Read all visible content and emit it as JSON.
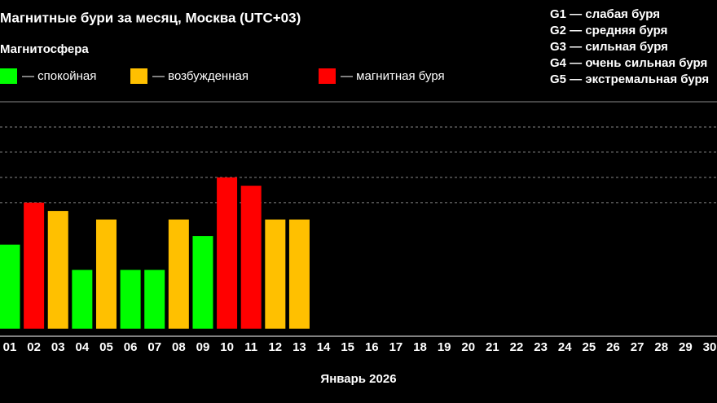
{
  "chart_data": {
    "type": "bar",
    "title": "Магнитные бури за месяц, Москва (UTC+03)",
    "legend_title": "Магнитосфера",
    "legend": [
      {
        "name": "— спокойная",
        "color": "#00ff00"
      },
      {
        "name": "— возбужденная",
        "color": "#ffc000"
      },
      {
        "name": "— магнитная буря",
        "color": "#ff0000"
      }
    ],
    "annotations": [
      "G1 — слабая буря",
      "G2 — средняя буря",
      "G3 — сильная буря",
      "G4 — очень сильная буря",
      "G5 — экстремальная буря"
    ],
    "x_label": "Январь 2026",
    "categories": [
      "01",
      "02",
      "03",
      "04",
      "05",
      "06",
      "07",
      "08",
      "09",
      "10",
      "11",
      "12",
      "13",
      "14",
      "15",
      "16",
      "17",
      "18",
      "19",
      "20",
      "21",
      "22",
      "23",
      "24",
      "25",
      "26",
      "27",
      "28",
      "29",
      "30"
    ],
    "values": [
      3.33,
      5,
      4.67,
      2.33,
      4.33,
      2.33,
      2.33,
      4.33,
      3.67,
      6,
      5.67,
      4.33,
      4.33,
      null,
      null,
      null,
      null,
      null,
      null,
      null,
      null,
      null,
      null,
      null,
      null,
      null,
      null,
      null,
      null,
      null
    ],
    "colors": [
      "#00ff00",
      "#ff0000",
      "#ffc000",
      "#00ff00",
      "#ffc000",
      "#00ff00",
      "#00ff00",
      "#ffc000",
      "#00ff00",
      "#ff0000",
      "#ff0000",
      "#ffc000",
      "#ffc000",
      null,
      null,
      null,
      null,
      null,
      null,
      null,
      null,
      null,
      null,
      null,
      null,
      null,
      null,
      null,
      null,
      null
    ],
    "ylim": [
      -0.3,
      9
    ],
    "yticks": [
      5,
      6,
      7,
      8,
      9
    ],
    "grid": true
  }
}
